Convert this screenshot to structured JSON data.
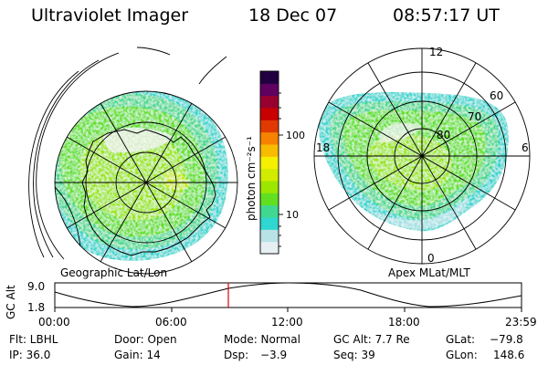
{
  "header": {
    "instrument": "Ultraviolet Imager",
    "date": "18 Dec 07",
    "time": "08:57:17 UT"
  },
  "geographic_panel": {
    "caption": "Geographic Lat/Lon",
    "view": "polar projection with continent outlines over auroral emission image"
  },
  "apex_panel": {
    "caption": "Apex MLat/MLT",
    "mlt_labels": [
      "12",
      "18",
      "6",
      "0"
    ],
    "mlat_labels": [
      "60",
      "70",
      "80"
    ]
  },
  "colorbar": {
    "label": "photon cm⁻²s⁻¹",
    "tick_labels": [
      "100",
      "10"
    ],
    "scale": "log",
    "colors": [
      "#e6eff2",
      "#b8e2e6",
      "#30d6d0",
      "#40d890",
      "#60e020",
      "#9ce600",
      "#d2ec00",
      "#f5f000",
      "#f7bc00",
      "#f68200",
      "#e03a00",
      "#c80000",
      "#980030",
      "#600060",
      "#200040"
    ]
  },
  "altitude_plot": {
    "ylabel": "GC Alt",
    "y_ticks": [
      "9.0",
      "1.8"
    ],
    "x_ticks": [
      "00:00",
      "06:00",
      "12:00",
      "18:00",
      "23:59"
    ],
    "marker_time": "08:57",
    "marker_color": "#e00000"
  },
  "info": {
    "flt": "Flt: LBHL",
    "ip": "IP: 36.0",
    "door": "Door: Open",
    "gain": "Gain: 14",
    "mode": "Mode: Normal",
    "dsp_label": "Dsp:",
    "dsp_value": "−3.9",
    "gcalt": "GC Alt: 7.7 Re",
    "seq": "Seq: 39",
    "glat_label": "GLat:",
    "glat_value": "−79.8",
    "glon_label": "GLon:",
    "glon_value": "148.6"
  }
}
